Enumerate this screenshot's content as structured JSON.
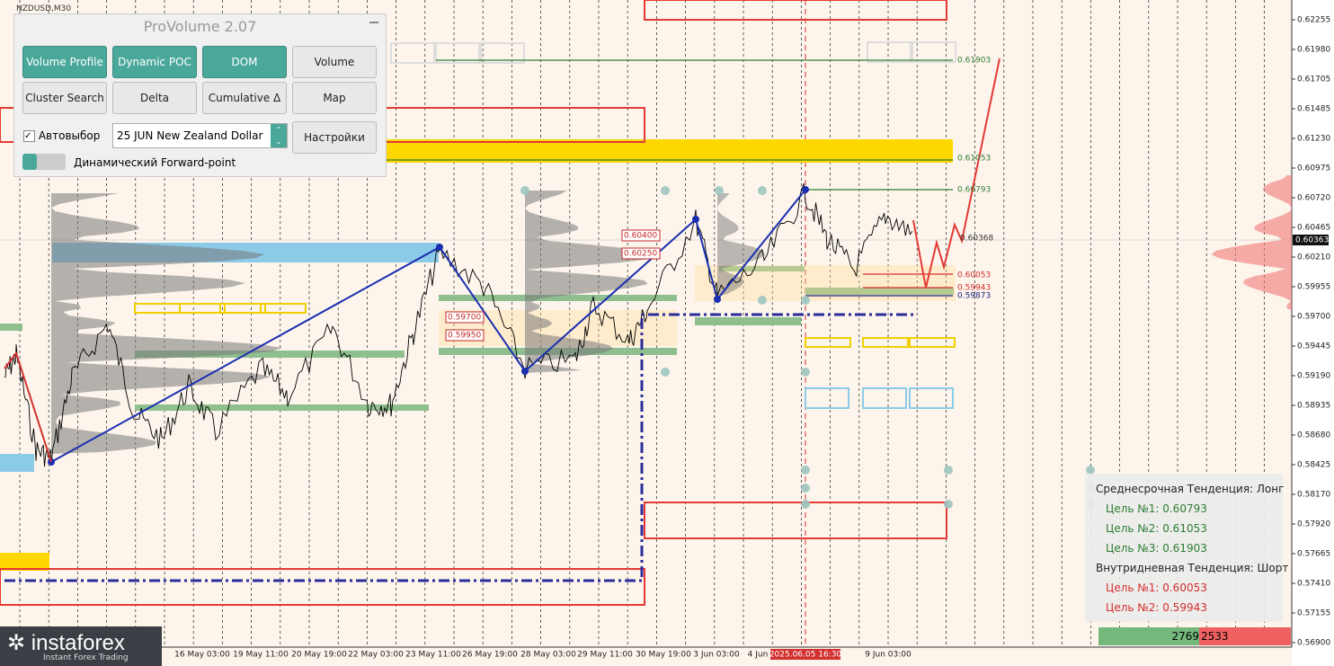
{
  "window": {
    "symbol": "NZDUSD,M30"
  },
  "panel": {
    "title": "ProVolume 2.07",
    "buttons": [
      "Volume Profile",
      "Dynamic POC",
      "DOM",
      "Volume",
      "Cluster Search",
      "Delta",
      "Cumulative Δ",
      "Map"
    ],
    "auto_select": "Автовыбор",
    "contract": "25 JUN New Zealand Dollar",
    "settings": "Настройки",
    "forward_point": "Динамический Forward-point"
  },
  "price_axis": {
    "labels": [
      "0.62255",
      "0.61980",
      "0.61705",
      "0.61485",
      "0.61230",
      "0.60975",
      "0.60720",
      "0.60465",
      "0.60210",
      "0.59955",
      "0.59700",
      "0.59445",
      "0.59190",
      "0.58935",
      "0.58680",
      "0.58425",
      "0.58170",
      "0.57920",
      "0.57665",
      "0.57410",
      "0.57155",
      "0.56900"
    ],
    "current": "0.60363"
  },
  "time_axis": {
    "labels": [
      "16 May 03:00",
      "19 May 11:00",
      "20 May 19:00",
      "22 May 03:00",
      "23 May 11:00",
      "26 May 19:00",
      "28 May 03:00",
      "29 May 11:00",
      "30 May 19:00",
      "3 Jun 03:00",
      "4 Jun",
      "9 Jun 03:00"
    ],
    "cursor": "2025.06.05 16:30"
  },
  "levels": [
    {
      "label": "0.61903",
      "color": "#2e7d32"
    },
    {
      "label": "0.61053",
      "color": "#2e7d32"
    },
    {
      "label": "0.60793",
      "color": "#2e7d32"
    },
    {
      "label": "0.60368",
      "color": "#333333"
    },
    {
      "label": "0.60053",
      "color": "#d32f2f"
    },
    {
      "label": "0.59943",
      "color": "#d32f2f"
    },
    {
      "label": "0.59873",
      "color": "#1a237e"
    },
    {
      "label": "0.60400",
      "color": "#c62828"
    },
    {
      "label": "0.60250",
      "color": "#c62828"
    },
    {
      "label": "0.59700",
      "color": "#c62828"
    },
    {
      "label": "0.59950",
      "color": "#c62828"
    }
  ],
  "info": {
    "medium_title": "Среднесрочная Тенденция: Лонг",
    "medium_targets": [
      "Цель №1: 0.60793",
      "Цель №2: 0.61053",
      "Цель №3: 0.61903"
    ],
    "intraday_title": "Внутридневная Тенденция: Шорт",
    "intraday_targets": [
      "Цель №1: 0.60053",
      "Цель №2: 0.59943"
    ]
  },
  "volume_bar": {
    "buy": "2769",
    "sell": "2533"
  },
  "logo": {
    "name": "instaforex",
    "tagline": "Instant Forex Trading"
  }
}
